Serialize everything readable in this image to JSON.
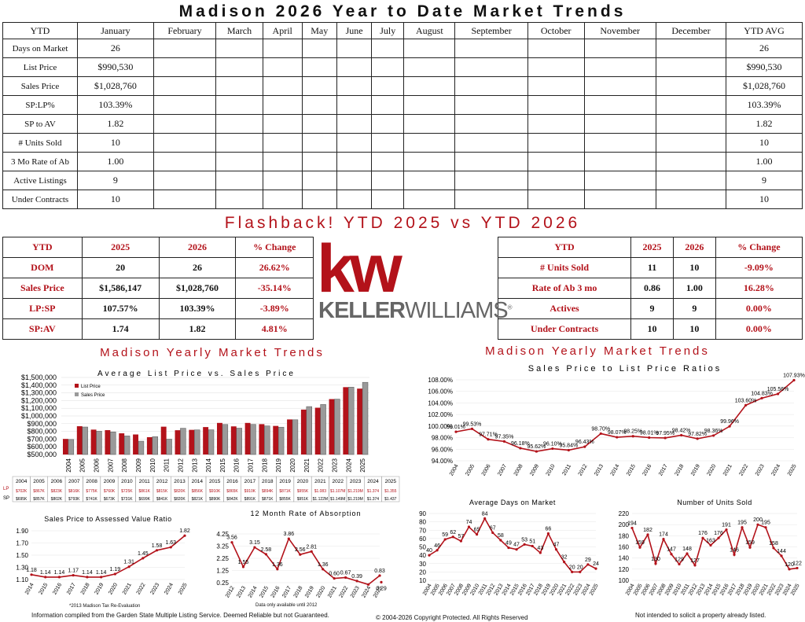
{
  "title": "Madison 2026 Year to Date Market Trends",
  "ytd_table": {
    "header": [
      "YTD",
      "January",
      "February",
      "March",
      "April",
      "May",
      "June",
      "July",
      "August",
      "September",
      "October",
      "November",
      "December",
      "YTD AVG"
    ],
    "rows": [
      [
        "Days on Market",
        "26",
        "",
        "",
        "",
        "",
        "",
        "",
        "",
        "",
        "",
        "",
        "",
        "26"
      ],
      [
        "List Price",
        "$990,530",
        "",
        "",
        "",
        "",
        "",
        "",
        "",
        "",
        "",
        "",
        "",
        "$990,530"
      ],
      [
        "Sales Price",
        "$1,028,760",
        "",
        "",
        "",
        "",
        "",
        "",
        "",
        "",
        "",
        "",
        "",
        "$1,028,760"
      ],
      [
        "SP:LP%",
        "103.39%",
        "",
        "",
        "",
        "",
        "",
        "",
        "",
        "",
        "",
        "",
        "",
        "103.39%"
      ],
      [
        "SP to AV",
        "1.82",
        "",
        "",
        "",
        "",
        "",
        "",
        "",
        "",
        "",
        "",
        "",
        "1.82"
      ],
      [
        "# Units Sold",
        "10",
        "",
        "",
        "",
        "",
        "",
        "",
        "",
        "",
        "",
        "",
        "",
        "10"
      ],
      [
        "3 Mo Rate of Ab",
        "1.00",
        "",
        "",
        "",
        "",
        "",
        "",
        "",
        "",
        "",
        "",
        "",
        "1.00"
      ],
      [
        "Active Listings",
        "9",
        "",
        "",
        "",
        "",
        "",
        "",
        "",
        "",
        "",
        "",
        "",
        "9"
      ],
      [
        "Under Contracts",
        "10",
        "",
        "",
        "",
        "",
        "",
        "",
        "",
        "",
        "",
        "",
        "",
        "10"
      ]
    ]
  },
  "flashback_title": "Flashback!  YTD 2025 vs YTD 2026",
  "compare_left": {
    "header": [
      "YTD",
      "2025",
      "2026",
      "% Change"
    ],
    "rows": [
      [
        "DOM",
        "20",
        "26",
        "26.62%"
      ],
      [
        "Sales Price",
        "$1,586,147",
        "$1,028,760",
        "-35.14%"
      ],
      [
        "LP:SP",
        "107.57%",
        "103.39%",
        "-3.89%"
      ],
      [
        "SP:AV",
        "1.74",
        "1.82",
        "4.81%"
      ]
    ]
  },
  "compare_right": {
    "header": [
      "YTD",
      "2025",
      "2026",
      "% Change"
    ],
    "rows": [
      [
        "# Units Sold",
        "11",
        "10",
        "-9.09%"
      ],
      [
        "Rate of Ab 3 mo",
        "0.86",
        "1.00",
        "16.28%"
      ],
      [
        "Actives",
        "9",
        "9",
        "0.00%"
      ],
      [
        "Under Contracts",
        "10",
        "10",
        "0.00%"
      ]
    ]
  },
  "logo": {
    "mark": "kw",
    "name_bold": "KELLER",
    "name_rest": "WILLIAMS",
    "reg": "®"
  },
  "left_heading": "Madison Yearly Market Trends",
  "right_heading": "Madison Yearly Market Trends",
  "footer": {
    "left": "Information compiled from the Garden State Multiple Listing Service.  Deemed Reliable but not Guaranteed.",
    "center": "© 2004-2026 Copyright Protected.  All Rights Reserved",
    "right": "Not intended to solicit a property already listed.",
    "note1": "*2013 Madison Tax Re-Evaluation",
    "note2": "Data only available until 2012"
  },
  "chart_data": [
    {
      "type": "bar",
      "title": "Average List Price vs. Sales Price",
      "categories": [
        "2004",
        "2005",
        "2006",
        "2007",
        "2008",
        "2009",
        "2010",
        "2011",
        "2012",
        "2013",
        "2014",
        "2015",
        "2016",
        "2017",
        "2018",
        "2019",
        "2020",
        "2021",
        "2022",
        "2023",
        "2024",
        "2025"
      ],
      "series": [
        {
          "name": "List Price",
          "values": [
            702,
            867,
            823,
            816,
            775,
            760,
            725,
            861,
            815,
            820,
            856,
            910,
            865,
            910,
            894,
            871,
            955,
            1083,
            1107,
            1219,
            1374,
            1355
          ]
        },
        {
          "name": "Sales Price",
          "values": [
            695,
            857,
            802,
            793,
            741,
            673,
            731,
            699,
            841,
            820,
            821,
            890,
            842,
            891,
            871,
            855,
            951,
            1122,
            1149,
            1219,
            1374,
            1437
          ]
        }
      ],
      "table_rows": {
        "years": [
          "2004",
          "2005",
          "2006",
          "2007",
          "2008",
          "2009",
          "2010",
          "2011",
          "2012",
          "2013",
          "2014",
          "2015",
          "2016",
          "2017",
          "2018",
          "2019",
          "2020",
          "2021",
          "2022",
          "2023",
          "2024",
          "2025"
        ],
        "lp": [
          "$702K",
          "$867K",
          "$823K",
          "$816K",
          "$775K",
          "$760K",
          "$725K",
          "$861K",
          "$815K",
          "$820K",
          "$856K",
          "$910K",
          "$865K",
          "$910K",
          "$894K",
          "$871K",
          "$955K",
          "$1.083",
          "$1.107M",
          "$1.219M",
          "$1.374",
          "$1.355"
        ],
        "sp": [
          "$695K",
          "$857K",
          "$802K",
          "$793K",
          "$741K",
          "$673K",
          "$731K",
          "$699K",
          "$841K",
          "$820K",
          "$821K",
          "$890K",
          "$842K",
          "$891K",
          "$871K",
          "$855K",
          "$951K",
          "$1.122M",
          "$1.149M",
          "$1.219M",
          "$1.374",
          "$1.437"
        ],
        "lp_label": "LP",
        "sp_label": "SP"
      },
      "ylabel": "",
      "yticks": [
        "$500,000",
        "$600,000",
        "$700,000",
        "$800,000",
        "$900,000",
        "$1,000,000",
        "$1,100,000",
        "$1,200,000",
        "$1,300,000",
        "$1,400,000",
        "$1,500,000"
      ],
      "ylim": [
        500000,
        1500000
      ],
      "legend": "top-left",
      "colors": {
        "lp": "#b3121a",
        "sp": "#9a9a9a"
      }
    },
    {
      "type": "line",
      "title": "Sales Price to List Price Ratios",
      "x": [
        "2004",
        "2005",
        "2006",
        "2007",
        "2008",
        "2009",
        "2010",
        "2011",
        "2012",
        "2013",
        "2014",
        "2015",
        "2016",
        "2017",
        "2018",
        "2019",
        "2020",
        "2021",
        "2022",
        "2023",
        "2024",
        "2025"
      ],
      "values": [
        99.01,
        99.53,
        97.71,
        97.35,
        96.18,
        95.62,
        96.1,
        95.84,
        96.43,
        98.7,
        98.07,
        98.25,
        98.01,
        97.95,
        98.42,
        97.82,
        98.36,
        99.96,
        103.6,
        104.83,
        105.56,
        107.93
      ],
      "labels": [
        "99.01%",
        "99.53%",
        "97.71%",
        "97.35%",
        "96.18%",
        "95.62%",
        "96.10%",
        "95.84%",
        "96.43%",
        "98.70%",
        "98.07%",
        "98.25%",
        "98.01%",
        "97.95%",
        "98.42%",
        "97.82%",
        "98.36%",
        "99.96%",
        "103.60%",
        "104.83%",
        "105.56%",
        "107.93%"
      ],
      "ylim": [
        94,
        108
      ],
      "yticks": [
        "94.00%",
        "96.00%",
        "98.00%",
        "100.00%",
        "102.00%",
        "104.00%",
        "106.00%",
        "108.00%"
      ]
    },
    {
      "type": "line",
      "title": "Sales Price to Assessed Value Ratio",
      "x": [
        "2014",
        "2015",
        "2016",
        "2017",
        "2018",
        "2019",
        "2020",
        "2021",
        "2022",
        "2023",
        "2024",
        "2025"
      ],
      "values": [
        1.18,
        1.14,
        1.14,
        1.17,
        1.14,
        1.14,
        1.19,
        1.31,
        1.45,
        1.58,
        1.63,
        1.82
      ],
      "labels": [
        "1.18",
        "1.14",
        "1.14",
        "1.17",
        "1.14",
        "1.14",
        "1.19",
        "1.31",
        "1.45",
        "1.58",
        "1.63",
        "1.82"
      ],
      "ylim": [
        1.1,
        1.9
      ],
      "yticks": [
        "1.10",
        "1.30",
        "1.50",
        "1.70",
        "1.90"
      ]
    },
    {
      "type": "line",
      "title": "12 Month Rate of Absorption",
      "x": [
        "2012",
        "2013",
        "2014",
        "2015",
        "2016",
        "2017",
        "2018",
        "2019",
        "2020",
        "2021",
        "2022",
        "2023",
        "2024",
        "2025"
      ],
      "values": [
        3.56,
        1.55,
        3.15,
        2.58,
        1.36,
        3.86,
        2.56,
        2.81,
        1.36,
        0.6,
        0.67,
        0.39,
        0.1,
        0.83
      ],
      "extra_point": 0.29,
      "labels": [
        "3.56",
        "1.55",
        "3.15",
        "2.58",
        "1.36",
        "3.86",
        "2.56",
        "2.81",
        "1.36",
        "0.60",
        "0.67",
        "0.39",
        "",
        "0.83"
      ],
      "extra_label": "0.29",
      "ylim": [
        0.25,
        4.25
      ],
      "yticks": [
        "0.25",
        "1.25",
        "2.25",
        "3.25",
        "4.25"
      ]
    },
    {
      "type": "line",
      "title": "Average Days on Market",
      "x": [
        "2004",
        "2005",
        "2006",
        "2007",
        "2008",
        "2009",
        "2010",
        "2011",
        "2012",
        "2013",
        "2014",
        "2015",
        "2016",
        "2017",
        "2018",
        "2019",
        "2020",
        "2021",
        "2022",
        "2023",
        "2024",
        "2025"
      ],
      "values": [
        40,
        46,
        59,
        62,
        57,
        74,
        65,
        84,
        67,
        58,
        49,
        47,
        53,
        51,
        43,
        66,
        47,
        32,
        20,
        20,
        29,
        24
      ],
      "labels": [
        "40",
        "46",
        "59",
        "62",
        "57",
        "74",
        "65",
        "84",
        "67",
        "58",
        "49",
        "47",
        "53",
        "51",
        "43",
        "66",
        "47",
        "32",
        "20",
        "20",
        "29",
        "24"
      ],
      "ylim": [
        10,
        90
      ],
      "yticks": [
        "10",
        "20",
        "30",
        "40",
        "50",
        "60",
        "70",
        "80",
        "90"
      ]
    },
    {
      "type": "line",
      "title": "Number of Units Sold",
      "x": [
        "2004",
        "2005",
        "2006",
        "2007",
        "2008",
        "2009",
        "2010",
        "2011",
        "2012",
        "2013",
        "2014",
        "2015",
        "2016",
        "2017",
        "2018",
        "2019",
        "2020",
        "2021",
        "2022",
        "2023",
        "2024",
        "2025"
      ],
      "values": [
        194,
        159,
        182,
        130,
        174,
        147,
        129,
        148,
        127,
        176,
        163,
        176,
        191,
        146,
        195,
        159,
        200,
        195,
        158,
        144,
        120,
        122
      ],
      "labels": [
        "194",
        "159",
        "182",
        "130",
        "174",
        "147",
        "129",
        "148",
        "127",
        "176",
        "163",
        "176",
        "191",
        "146",
        "195",
        "159",
        "200",
        "195",
        "158",
        "144",
        "120",
        "122"
      ],
      "ylim": [
        100,
        220
      ],
      "yticks": [
        "100",
        "120",
        "140",
        "160",
        "180",
        "200",
        "220"
      ]
    }
  ]
}
